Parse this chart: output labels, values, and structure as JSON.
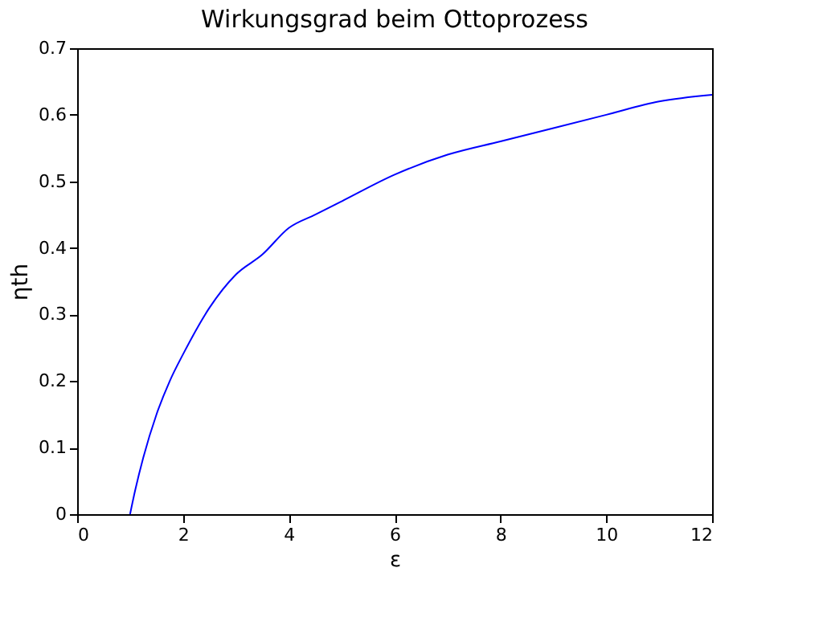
{
  "chart_data": {
    "type": "line",
    "title": "Wirkungsgrad beim Ottoprozess",
    "xlabel": "ε",
    "ylabel": "ηth",
    "x": [
      1,
      1.1,
      1.25,
      1.5,
      1.75,
      2,
      2.5,
      3,
      3.5,
      4,
      4.5,
      5,
      6,
      7,
      8,
      9,
      10,
      11,
      12
    ],
    "series": [
      {
        "color": "#0000ff",
        "values": [
          0,
          0.037,
          0.085,
          0.15,
          0.2,
          0.24,
          0.31,
          0.36,
          0.39,
          0.43,
          0.45,
          0.47,
          0.51,
          0.54,
          0.56,
          0.58,
          0.6,
          0.62,
          0.63
        ]
      }
    ],
    "xlim": [
      0,
      12
    ],
    "xticks": [
      0,
      2,
      4,
      6,
      8,
      10,
      12
    ],
    "ylim": [
      0,
      0.7
    ],
    "yticks": [
      0,
      0.1,
      0.2,
      0.3,
      0.4,
      0.5,
      0.6,
      0.7
    ],
    "grid": false,
    "marker": "none",
    "line_style": "solid"
  }
}
